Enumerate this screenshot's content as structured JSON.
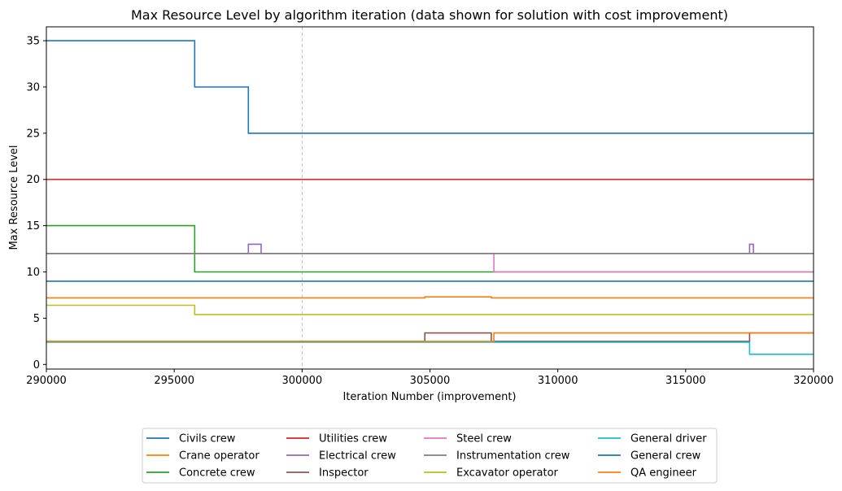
{
  "chart_data": {
    "type": "line",
    "step": true,
    "title": "Max Resource Level by algorithm iteration (data shown for solution with cost improvement)",
    "xlabel": "Iteration Number (improvement)",
    "ylabel": "Max Resource Level",
    "xlim": [
      290000,
      320000
    ],
    "ylim": [
      -0.5,
      36.5
    ],
    "xticks": [
      290000,
      295000,
      300000,
      305000,
      310000,
      315000,
      320000
    ],
    "xtick_labels": [
      "290000",
      "295000",
      "300000",
      "305000",
      "310000",
      "315000",
      "320000"
    ],
    "yticks": [
      0,
      5,
      10,
      15,
      20,
      25,
      30,
      35
    ],
    "ytick_labels": [
      "0",
      "5",
      "10",
      "15",
      "20",
      "25",
      "30",
      "35"
    ],
    "vline_x": 300000,
    "grid": false,
    "legend_position": "below plot, 4 columns",
    "series": [
      {
        "name": "Civils crew",
        "color": "#1f77b4",
        "points": [
          [
            290000,
            35
          ],
          [
            295800,
            35
          ],
          [
            295800,
            30
          ],
          [
            297900,
            30
          ],
          [
            297900,
            25
          ],
          [
            320000,
            25
          ]
        ]
      },
      {
        "name": "Crane operator",
        "color": "#ff7f0e",
        "points": [
          [
            290000,
            7.2
          ],
          [
            304800,
            7.2
          ],
          [
            304800,
            7.3
          ],
          [
            307400,
            7.3
          ],
          [
            307400,
            7.2
          ],
          [
            320000,
            7.2
          ]
        ]
      },
      {
        "name": "Concrete crew",
        "color": "#2ca02c",
        "points": [
          [
            290000,
            15
          ],
          [
            295800,
            15
          ],
          [
            295800,
            10
          ],
          [
            307500,
            10
          ],
          [
            320000,
            10
          ]
        ]
      },
      {
        "name": "Utilities crew",
        "color": "#d62728",
        "points": [
          [
            290000,
            20
          ],
          [
            320000,
            20
          ]
        ]
      },
      {
        "name": "Electrical crew",
        "color": "#9467bd",
        "points": [
          [
            290000,
            12
          ],
          [
            297900,
            12
          ],
          [
            297900,
            13
          ],
          [
            298400,
            13
          ],
          [
            298400,
            12
          ],
          [
            317500,
            12
          ],
          [
            317500,
            13
          ],
          [
            317650,
            13
          ],
          [
            317650,
            12
          ],
          [
            320000,
            12
          ]
        ]
      },
      {
        "name": "Inspector",
        "color": "#8c564b",
        "points": [
          [
            290000,
            2.5
          ],
          [
            304800,
            2.5
          ],
          [
            304800,
            3.4
          ],
          [
            307400,
            3.4
          ],
          [
            307400,
            2.5
          ],
          [
            317500,
            2.5
          ],
          [
            317500,
            3.4
          ],
          [
            320000,
            3.4
          ]
        ]
      },
      {
        "name": "Steel crew",
        "color": "#e377c2",
        "points": [
          [
            290000,
            12
          ],
          [
            307500,
            12
          ],
          [
            307500,
            10
          ],
          [
            320000,
            10
          ]
        ]
      },
      {
        "name": "Instrumentation crew",
        "color": "#7f7f7f",
        "points": [
          [
            290000,
            12
          ],
          [
            320000,
            12
          ]
        ]
      },
      {
        "name": "Excavator operator",
        "color": "#bcbd22",
        "points": [
          [
            290000,
            6.4
          ],
          [
            295800,
            6.4
          ],
          [
            295800,
            5.4
          ],
          [
            320000,
            5.4
          ]
        ]
      },
      {
        "name": "General driver",
        "color": "#17becf",
        "points": [
          [
            290000,
            2.4
          ],
          [
            317500,
            2.4
          ],
          [
            317500,
            1.1
          ],
          [
            320000,
            1.1
          ]
        ]
      },
      {
        "name": "General crew",
        "color": "#1f77b4",
        "points": [
          [
            290000,
            9
          ],
          [
            320000,
            9
          ]
        ]
      },
      {
        "name": "QA engineer",
        "color": "#ff7f0e",
        "points": [
          [
            290000,
            2.5
          ],
          [
            307500,
            2.5
          ],
          [
            307500,
            3.4
          ],
          [
            320000,
            3.4
          ]
        ]
      }
    ],
    "legend_order": [
      [
        "Civils crew",
        "Crane operator",
        "Concrete crew"
      ],
      [
        "Utilities crew",
        "Electrical crew",
        "Inspector"
      ],
      [
        "Steel crew",
        "Instrumentation crew",
        "Excavator operator"
      ],
      [
        "General driver",
        "General crew",
        "QA engineer"
      ]
    ]
  }
}
